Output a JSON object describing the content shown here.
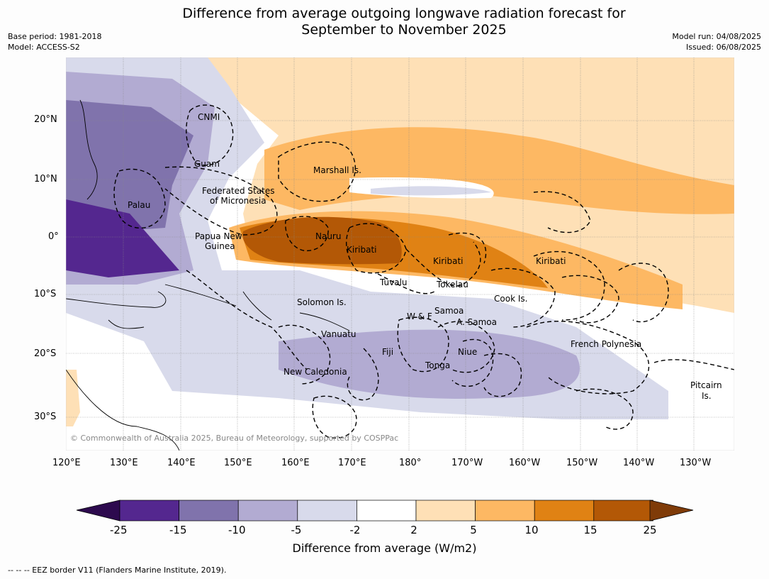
{
  "title_line1": "Difference from average outgoing longwave radiation forecast for",
  "title_line2": "September to November 2025",
  "meta": {
    "base_period": "Base period: 1981-2018",
    "model": "Model: ACCESS-S2",
    "model_run": "Model run: 04/08/2025",
    "issued": "Issued: 06/08/2025"
  },
  "map": {
    "lat_ticks": [
      "20°N",
      "10°N",
      "0°",
      "10°S",
      "20°S",
      "30°S"
    ],
    "lon_ticks": [
      "120°E",
      "130°E",
      "140°E",
      "150°E",
      "160°E",
      "170°E",
      "180°",
      "170°W",
      "160°W",
      "150°W",
      "140°W",
      "130°W"
    ],
    "labels": {
      "cnmi": "CNMI",
      "guam": "Guam",
      "marshall": "Marshall Is.",
      "fsm1": "Federated States",
      "fsm2": "of Micronesia",
      "palau": "Palau",
      "png1": "Papua New",
      "png2": "Guinea",
      "nauru": "Nauru",
      "kiribati1": "Kiribati",
      "kiribati2": "Kiribati",
      "kiribati3": "Kiribati",
      "tuvalu": "Tuvalu",
      "tokelau": "Tokelau",
      "cook": "Cook Is.",
      "solomon": "Solomon Is.",
      "wf": "W & F",
      "samoa": "Samoa",
      "asamoa": "A. Samoa",
      "vanuatu": "Vanuatu",
      "fiji": "Fiji",
      "niue": "Niue",
      "tonga": "Tonga",
      "frpoly": "French Polynesia",
      "newcal": "New Caledonia",
      "pitcairn1": "Pitcairn",
      "pitcairn2": "Is."
    },
    "copyright": "© Commonwealth of Australia 2025, Bureau of Meteorology, supported by COSPPac"
  },
  "colorbar": {
    "ticks": [
      "-25",
      "-15",
      "-10",
      "-5",
      "-2",
      "2",
      "5",
      "10",
      "15",
      "25"
    ],
    "colors": [
      "#2d0a4e",
      "#54278f",
      "#8073ac",
      "#b2abd2",
      "#d8daeb",
      "#ffffff",
      "#fee0b6",
      "#fdb863",
      "#e08214",
      "#b35806",
      "#7f3b08"
    ],
    "label": "Difference from average (W/m2)"
  },
  "footer": "--  --  -- EEZ border V11 (Flanders Marine Institute, 2019)."
}
